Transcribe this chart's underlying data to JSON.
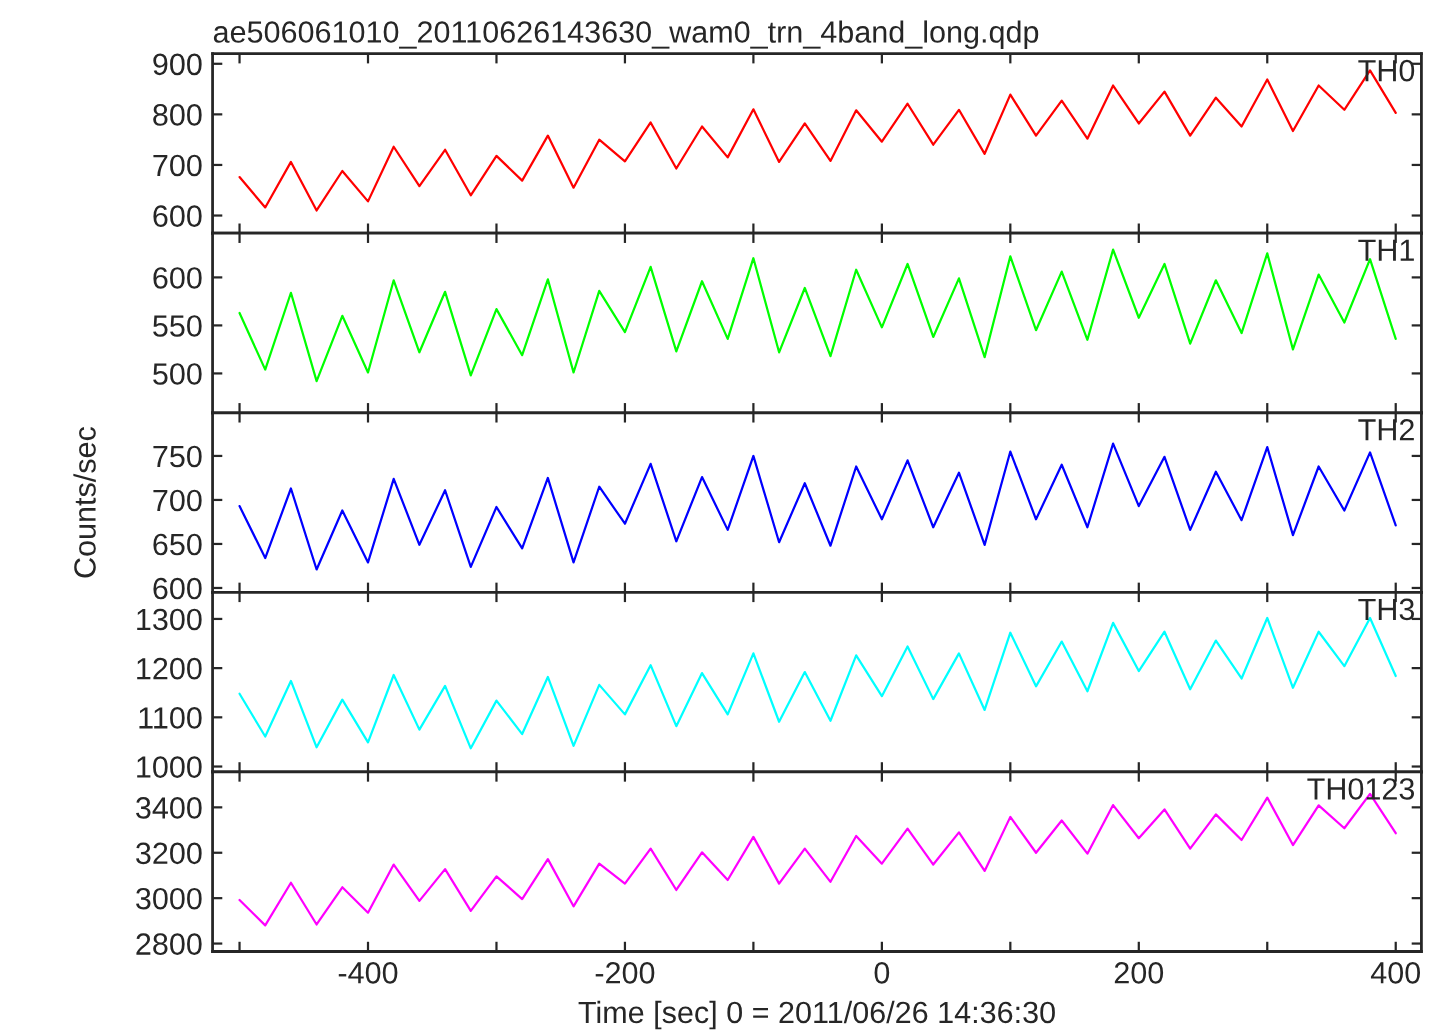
{
  "chart_data": [
    {
      "type": "line",
      "title": "ae506061010_20110626143630_wam0_trn_4band_long.qdp",
      "tick_labels": "y",
      "grid": false,
      "x": [
        -500,
        -480,
        -460,
        -440,
        -420,
        -400,
        -380,
        -360,
        -340,
        -320,
        -300,
        -280,
        -260,
        -240,
        -220,
        -200,
        -180,
        -160,
        -140,
        -120,
        -100,
        -80,
        -60,
        -40,
        -20,
        0,
        20,
        40,
        60,
        80,
        100,
        120,
        140,
        160,
        180,
        200,
        220,
        240,
        260,
        280,
        300,
        320,
        340,
        360,
        380,
        400
      ],
      "series": [
        {
          "name": "TH0",
          "color": "#ff0000",
          "values": [
            676,
            616,
            706,
            610,
            688,
            628,
            736,
            658,
            730,
            640,
            718,
            669,
            758,
            655,
            750,
            707,
            784,
            693,
            776,
            715,
            810,
            706,
            782,
            708,
            808,
            746,
            821,
            740,
            809,
            722,
            839,
            758,
            827,
            752,
            857,
            782,
            845,
            758,
            833,
            776,
            869,
            767,
            857,
            809,
            887,
            803
          ]
        }
      ],
      "xlim": [
        -521,
        420
      ],
      "xticks": [
        {
          "value": -500,
          "label": null
        },
        -400,
        {
          "value": -300,
          "label": null
        },
        -200,
        {
          "value": -100,
          "label": null
        },
        0,
        {
          "value": 100,
          "label": null
        },
        200,
        {
          "value": 300,
          "label": null
        },
        400
      ],
      "ylim": [
        565,
        920
      ],
      "yticks": [
        600,
        700,
        800,
        900
      ]
    },
    {
      "type": "line",
      "tick_labels": "y",
      "grid": false,
      "x": [
        -500,
        -480,
        -460,
        -440,
        -420,
        -400,
        -380,
        -360,
        -340,
        -320,
        -300,
        -280,
        -260,
        -240,
        -220,
        -200,
        -180,
        -160,
        -140,
        -120,
        -100,
        -80,
        -60,
        -40,
        -20,
        0,
        20,
        40,
        60,
        80,
        100,
        120,
        140,
        160,
        180,
        200,
        220,
        240,
        260,
        280,
        300,
        320,
        340,
        360,
        380,
        400
      ],
      "series": [
        {
          "name": "TH1",
          "color": "#00ff00",
          "values": [
            563,
            504,
            584,
            492,
            560,
            501,
            597,
            522,
            585,
            498,
            567,
            519,
            598,
            501,
            586,
            543,
            611,
            523,
            596,
            536,
            620,
            522,
            589,
            518,
            608,
            548,
            614,
            538,
            599,
            517,
            622,
            545,
            606,
            535,
            629,
            558,
            614,
            531,
            597,
            542,
            625,
            525,
            603,
            553,
            619,
            536
          ]
        }
      ],
      "xlim": [
        -521,
        420
      ],
      "xticks": [
        {
          "value": -500,
          "label": null
        },
        -400,
        {
          "value": -300,
          "label": null
        },
        -200,
        {
          "value": -100,
          "label": null
        },
        0,
        {
          "value": 100,
          "label": null
        },
        200,
        {
          "value": 300,
          "label": null
        },
        400
      ],
      "ylim": [
        459,
        646
      ],
      "yticks": [
        500,
        550,
        600
      ]
    },
    {
      "type": "line",
      "ylabel": "Counts/sec",
      "tick_labels": "y",
      "grid": false,
      "x": [
        -500,
        -480,
        -460,
        -440,
        -420,
        -400,
        -380,
        -360,
        -340,
        -320,
        -300,
        -280,
        -260,
        -240,
        -220,
        -200,
        -180,
        -160,
        -140,
        -120,
        -100,
        -80,
        -60,
        -40,
        -20,
        0,
        20,
        40,
        60,
        80,
        100,
        120,
        140,
        160,
        180,
        200,
        220,
        240,
        260,
        280,
        300,
        320,
        340,
        360,
        380,
        400
      ],
      "series": [
        {
          "name": "TH2",
          "color": "#0000ff",
          "values": [
            693,
            634,
            713,
            621,
            688,
            629,
            724,
            649,
            711,
            624,
            692,
            645,
            725,
            629,
            715,
            673,
            741,
            653,
            726,
            666,
            750,
            652,
            719,
            648,
            738,
            678,
            745,
            669,
            731,
            649,
            755,
            678,
            740,
            669,
            764,
            693,
            749,
            666,
            732,
            677,
            760,
            660,
            738,
            688,
            754,
            671
          ]
        }
      ],
      "xlim": [
        -521,
        420
      ],
      "xticks": [
        {
          "value": -500,
          "label": null
        },
        -400,
        {
          "value": -300,
          "label": null
        },
        -200,
        {
          "value": -100,
          "label": null
        },
        0,
        {
          "value": 100,
          "label": null
        },
        200,
        {
          "value": 300,
          "label": null
        },
        400
      ],
      "ylim": [
        595,
        799
      ],
      "yticks": [
        600,
        650,
        700,
        750
      ]
    },
    {
      "type": "line",
      "tick_labels": "y",
      "grid": false,
      "x": [
        -500,
        -480,
        -460,
        -440,
        -420,
        -400,
        -380,
        -360,
        -340,
        -320,
        -300,
        -280,
        -260,
        -240,
        -220,
        -200,
        -180,
        -160,
        -140,
        -120,
        -100,
        -80,
        -60,
        -40,
        -20,
        0,
        20,
        40,
        60,
        80,
        100,
        120,
        140,
        160,
        180,
        200,
        220,
        240,
        260,
        280,
        300,
        320,
        340,
        360,
        380,
        400
      ],
      "series": [
        {
          "name": "TH3",
          "color": "#00ffff",
          "values": [
            1148,
            1061,
            1174,
            1039,
            1136,
            1049,
            1186,
            1075,
            1164,
            1037,
            1134,
            1066,
            1182,
            1042,
            1166,
            1106,
            1206,
            1082,
            1190,
            1106,
            1230,
            1091,
            1192,
            1093,
            1226,
            1143,
            1244,
            1137,
            1230,
            1115,
            1272,
            1163,
            1254,
            1153,
            1292,
            1194,
            1274,
            1157,
            1256,
            1179,
            1302,
            1160,
            1274,
            1204,
            1302,
            1184
          ]
        }
      ],
      "xlim": [
        -521,
        420
      ],
      "xticks": [
        {
          "value": -500,
          "label": null
        },
        -400,
        {
          "value": -300,
          "label": null
        },
        -200,
        {
          "value": -100,
          "label": null
        },
        0,
        {
          "value": 100,
          "label": null
        },
        200,
        {
          "value": 300,
          "label": null
        },
        400
      ],
      "ylim": [
        989,
        1354
      ],
      "yticks": [
        1000,
        1100,
        1200,
        1300
      ]
    },
    {
      "type": "line",
      "xlabel": "Time [sec] 0 = 2011/06/26 14:36:30",
      "grid": false,
      "x": [
        -500,
        -480,
        -460,
        -440,
        -420,
        -400,
        -380,
        -360,
        -340,
        -320,
        -300,
        -280,
        -260,
        -240,
        -220,
        -200,
        -180,
        -160,
        -140,
        -120,
        -100,
        -80,
        -60,
        -40,
        -20,
        0,
        20,
        40,
        60,
        80,
        100,
        120,
        140,
        160,
        180,
        200,
        220,
        240,
        260,
        280,
        300,
        320,
        340,
        360,
        380,
        400
      ],
      "series": [
        {
          "name": "TH0123",
          "color": "#ff00ff",
          "values": [
            2992,
            2880,
            3068,
            2884,
            3048,
            2936,
            3148,
            2988,
            3128,
            2944,
            3096,
            2996,
            3172,
            2964,
            3152,
            3064,
            3218,
            3036,
            3202,
            3080,
            3270,
            3064,
            3218,
            3072,
            3274,
            3152,
            3306,
            3148,
            3290,
            3120,
            3358,
            3200,
            3342,
            3196,
            3410,
            3264,
            3391,
            3218,
            3369,
            3256,
            3443,
            3234,
            3409,
            3308,
            3459,
            3286
          ]
        }
      ],
      "xlim": [
        -521,
        420
      ],
      "xticks": [
        {
          "value": -500,
          "label": null
        },
        -400,
        {
          "value": -300,
          "label": null
        },
        -200,
        {
          "value": -100,
          "label": null
        },
        0,
        {
          "value": 100,
          "label": null
        },
        200,
        {
          "value": 300,
          "label": null
        },
        400
      ],
      "ylim": [
        2765,
        3556
      ],
      "yticks": [
        2800,
        3000,
        3200,
        3400
      ]
    }
  ]
}
